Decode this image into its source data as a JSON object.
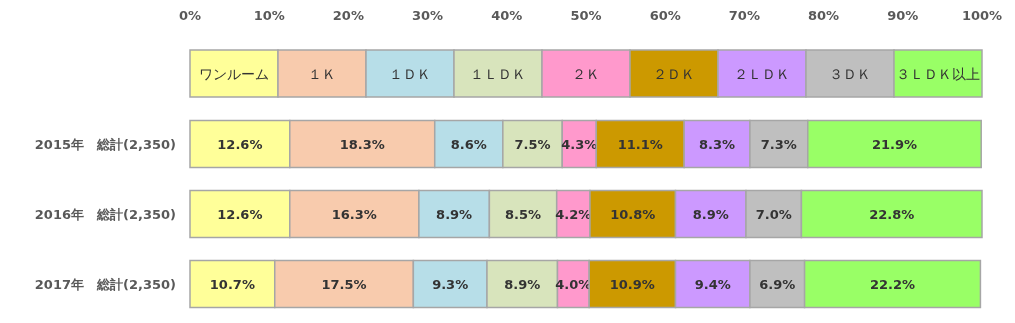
{
  "chart_data": {
    "type": "bar",
    "orientation": "horizontal",
    "stacked": true,
    "legend": "top",
    "categories": [
      "2015年　総計(2,350)",
      "2016年　総計(2,350)",
      "2017年　総計(2,350)"
    ],
    "xlim": [
      0,
      100
    ],
    "xticks": [
      {
        "value": 0,
        "label": "0%"
      },
      {
        "value": 10,
        "label": "10%"
      },
      {
        "value": 20,
        "label": "20%"
      },
      {
        "value": 30,
        "label": "30%"
      },
      {
        "value": 40,
        "label": "40%"
      },
      {
        "value": 50,
        "label": "50%"
      },
      {
        "value": 60,
        "label": "60%"
      },
      {
        "value": 70,
        "label": "70%"
      },
      {
        "value": 80,
        "label": "80%"
      },
      {
        "value": 90,
        "label": "90%"
      },
      {
        "value": 100,
        "label": "100%"
      }
    ],
    "series": [
      {
        "name": "ワンルーム",
        "color": "#ffff99",
        "values": [
          12.6,
          12.6,
          10.7
        ],
        "value_labels": [
          "12.6%",
          "12.6%",
          "10.7%"
        ]
      },
      {
        "name": "１Ｋ",
        "color": "#f8cbad",
        "values": [
          18.3,
          16.3,
          17.5
        ],
        "value_labels": [
          "18.3%",
          "16.3%",
          "17.5%"
        ]
      },
      {
        "name": "１ＤＫ",
        "color": "#b7dee8",
        "values": [
          8.6,
          8.9,
          9.3
        ],
        "value_labels": [
          "8.6%",
          "8.9%",
          "9.3%"
        ]
      },
      {
        "name": "１ＬＤＫ",
        "color": "#d8e4bc",
        "values": [
          7.5,
          8.5,
          8.9
        ],
        "value_labels": [
          "7.5%",
          "8.5%",
          "8.9%"
        ]
      },
      {
        "name": "２Ｋ",
        "color": "#ff99cc",
        "values": [
          4.3,
          4.2,
          4.0
        ],
        "value_labels": [
          "4.3%",
          "4.2%",
          "4.0%"
        ]
      },
      {
        "name": "２ＤＫ",
        "color": "#cc9900",
        "values": [
          11.1,
          10.8,
          10.9
        ],
        "value_labels": [
          "11.1%",
          "10.8%",
          "10.9%"
        ]
      },
      {
        "name": "２ＬＤＫ",
        "color": "#cc99ff",
        "values": [
          8.3,
          8.9,
          9.4
        ],
        "value_labels": [
          "8.3%",
          "8.9%",
          "9.4%"
        ]
      },
      {
        "name": "３ＤＫ",
        "color": "#bfbfbf",
        "values": [
          7.3,
          7.0,
          6.9
        ],
        "value_labels": [
          "7.3%",
          "7.0%",
          "6.9%"
        ]
      },
      {
        "name": "３ＬＤＫ以上",
        "color": "#99ff66",
        "values": [
          21.9,
          22.8,
          22.2
        ],
        "value_labels": [
          "21.9%",
          "22.8%",
          "22.2%"
        ]
      }
    ]
  }
}
